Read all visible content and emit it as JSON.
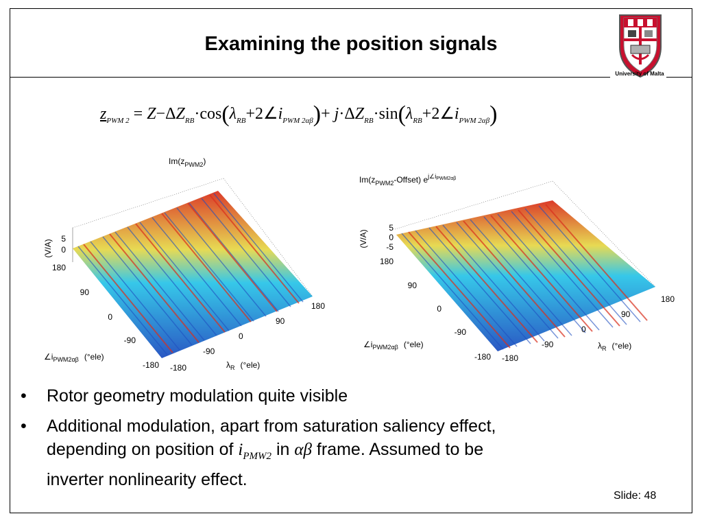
{
  "title": "Examining the position signals",
  "logo": {
    "caption": "University of Malta"
  },
  "plots": {
    "left": {
      "title": "Im(z",
      "title_sub": "PWM2",
      "title_end": ")",
      "zlabel": "(V/A)",
      "zticks": [
        "5",
        "0"
      ],
      "yticks": [
        "180",
        "90",
        "0",
        "-90",
        "-180"
      ],
      "xticks": [
        "-180",
        "-90",
        "0",
        "90",
        "180"
      ],
      "ylabel_main": "∠i",
      "ylabel_sub": "PWM2αβ",
      "ylabel_unit": "(°ele)",
      "xlabel_main": "λ",
      "xlabel_sub": "R",
      "xlabel_unit": "(°ele)"
    },
    "right": {
      "title": "Im(z",
      "title_sub": "PWM2",
      "title_mid": "-Offset) e",
      "title_sup": "j∠i",
      "title_sup_sub": "PWM2αβ",
      "zlabel": "(V/A)",
      "zticks": [
        "5",
        "0",
        "-5"
      ],
      "yticks": [
        "180",
        "90",
        "0",
        "-90",
        "-180"
      ],
      "xticks": [
        "-180",
        "-90",
        "0",
        "90",
        "180"
      ],
      "ylabel_main": "∠i",
      "ylabel_sub": "PWM2αβ",
      "ylabel_unit": "(°ele)",
      "xlabel_main": "λ",
      "xlabel_sub": "R",
      "xlabel_unit": "(°ele)"
    }
  },
  "bullets": {
    "b1": "Rotor geometry modulation quite visible",
    "b2_l1": "Additional modulation, apart from saturation saliency effect,",
    "b2_l2a": "depending on position of",
    "b2_var": "i",
    "b2_var_sub": "PMW2",
    "b2_l2b": "in",
    "b2_frame": "αβ",
    "b2_l2c": "frame.  Assumed to be",
    "b2_l3": "inverter nonlinearity effect."
  },
  "slide_number": "Slide: 48",
  "colors": {
    "crest_red": "#c8102e",
    "surface_blue": "#1f6fd0",
    "surface_cyan": "#2cc5e8",
    "surface_red": "#d9301e",
    "surface_yellow": "#e6d84a"
  }
}
